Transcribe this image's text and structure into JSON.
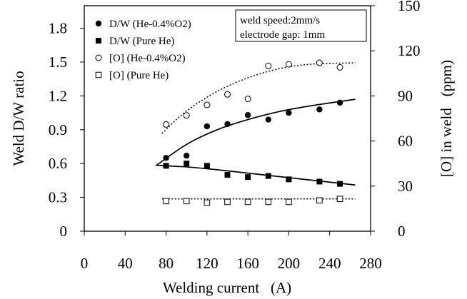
{
  "chart_data": {
    "type": "scatter",
    "xlabel": "Welding current   (A)",
    "ylabel_left": "Weld D/W ratio",
    "ylabel_right": "[O] in weld   (ppm)",
    "xlim": [
      0,
      280
    ],
    "ylim_left": [
      0,
      2.0
    ],
    "ylim_right": [
      0,
      150
    ],
    "x_ticks": [
      0,
      40,
      80,
      120,
      160,
      200,
      240,
      280
    ],
    "x_tick_labels": [
      "0",
      "40",
      "80",
      "120",
      "160",
      "200",
      "240",
      "280"
    ],
    "y_left_ticks": [
      0,
      0.3,
      0.6,
      0.9,
      1.2,
      1.5,
      1.8
    ],
    "y_left_tick_labels": [
      "0",
      "0.3",
      "0.6",
      "0.9",
      "1.2",
      "1.5",
      "1.8"
    ],
    "y_right_ticks": [
      0,
      30,
      60,
      90,
      120,
      150
    ],
    "y_right_tick_labels": [
      "0",
      "30",
      "60",
      "90",
      "120",
      "150"
    ],
    "grid": false,
    "legend_position": "top-left",
    "annotation": {
      "line1": "weld speed:2mm/s",
      "line2": "electrode gap: 1mm"
    },
    "series": [
      {
        "name": "D/W (He-0.4%O2)",
        "axis": "left",
        "marker": "filled-circle",
        "x": [
          80,
          100,
          120,
          140,
          160,
          180,
          200,
          230,
          250
        ],
        "y": [
          0.65,
          0.67,
          0.93,
          0.95,
          1.03,
          0.99,
          1.05,
          1.08,
          1.14
        ],
        "fit": {
          "style": "solid",
          "x": [
            70,
            100,
            130,
            160,
            190,
            220,
            265
          ],
          "y": [
            0.58,
            0.77,
            0.9,
            0.99,
            1.06,
            1.11,
            1.17
          ]
        }
      },
      {
        "name": "D/W (Pure He)",
        "axis": "left",
        "marker": "filled-square",
        "x": [
          80,
          100,
          120,
          140,
          160,
          180,
          200,
          230,
          250
        ],
        "y": [
          0.58,
          0.6,
          0.58,
          0.5,
          0.48,
          0.49,
          0.46,
          0.44,
          0.42
        ],
        "fit": {
          "style": "solid",
          "x": [
            70,
            100,
            130,
            160,
            190,
            220,
            265
          ],
          "y": [
            0.585,
            0.57,
            0.545,
            0.515,
            0.485,
            0.455,
            0.41
          ]
        }
      },
      {
        "name": "[O] (He-0.4%O2)",
        "axis": "right",
        "marker": "open-circle",
        "x": [
          80,
          100,
          120,
          140,
          160,
          180,
          200,
          230,
          250
        ],
        "y": [
          71,
          77,
          84,
          91,
          88,
          110,
          111,
          112,
          109
        ],
        "fit": {
          "style": "dotted",
          "x": [
            76,
            100,
            130,
            160,
            190,
            220,
            265
          ],
          "y": [
            65,
            80,
            93,
            102,
            108,
            111,
            112
          ]
        }
      },
      {
        "name": "[O] (Pure He)",
        "axis": "right",
        "marker": "open-square",
        "x": [
          80,
          100,
          120,
          140,
          160,
          180,
          200,
          230,
          250
        ],
        "y": [
          20,
          20,
          19,
          19.5,
          19.5,
          19.5,
          19.5,
          20.5,
          21.5
        ],
        "fit": {
          "style": "dotted",
          "x": [
            76,
            265
          ],
          "y": [
            21.5,
            21.5
          ]
        }
      }
    ]
  }
}
